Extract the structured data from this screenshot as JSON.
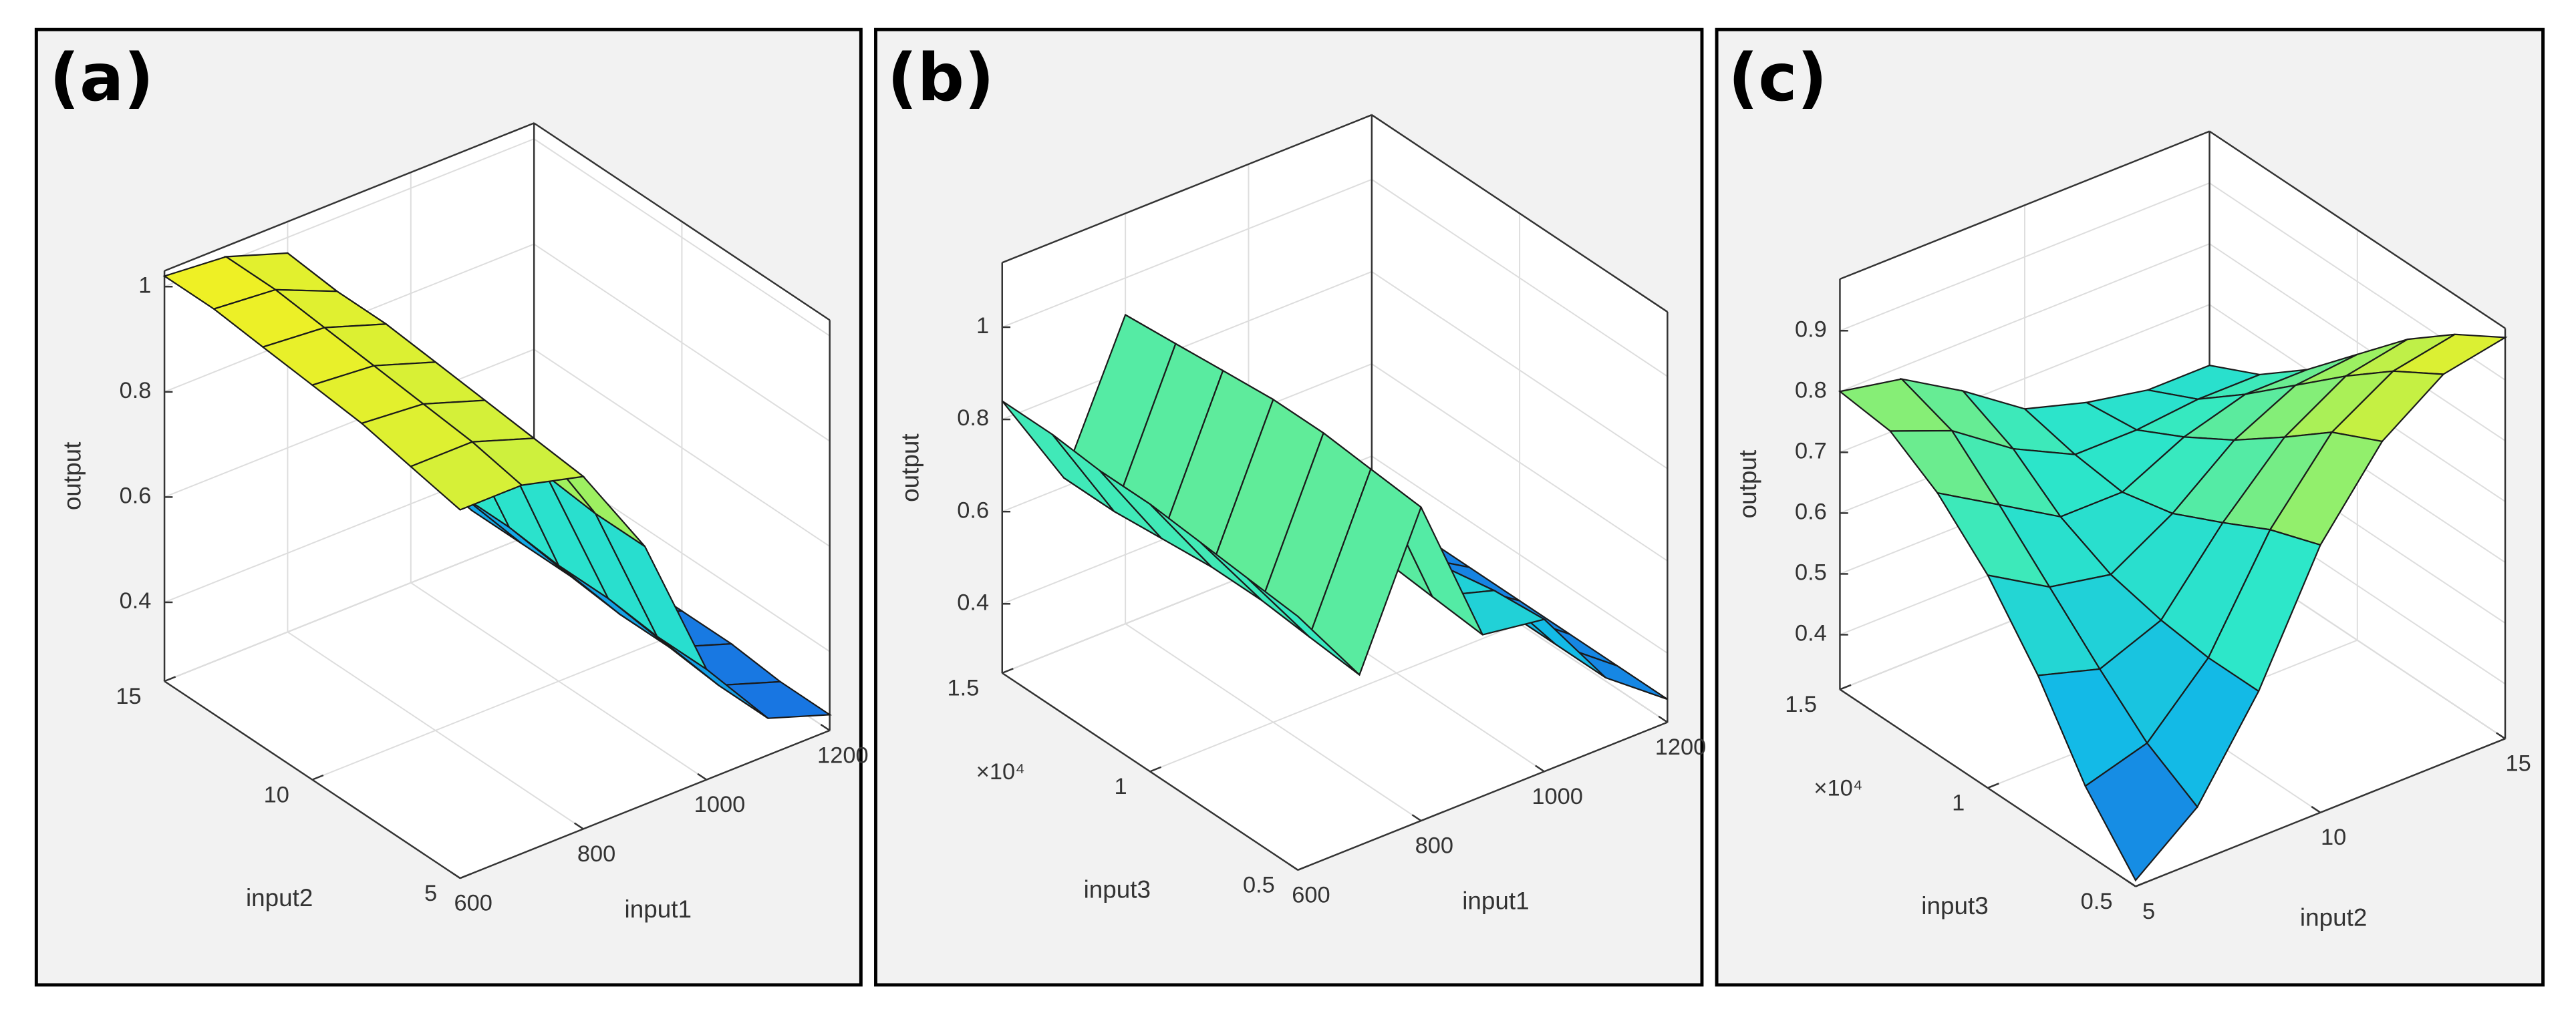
{
  "chart_data": [
    {
      "type": "surface",
      "title": "(a)",
      "x_label": "input1",
      "y_label": "input2",
      "z_label": "output",
      "x": [
        600,
        700,
        800,
        900,
        1000,
        1100,
        1200
      ],
      "y": [
        5,
        6.67,
        8.33,
        10,
        11.67,
        13.33,
        15
      ],
      "z": [
        [
          0.95,
          0.95,
          0.92,
          0.74,
          0.46,
          0.32,
          0.28
        ],
        [
          0.97,
          0.97,
          0.93,
          0.74,
          0.46,
          0.32,
          0.28
        ],
        [
          0.99,
          0.98,
          0.94,
          0.75,
          0.47,
          0.33,
          0.29
        ],
        [
          1.0,
          0.99,
          0.95,
          0.76,
          0.47,
          0.33,
          0.29
        ],
        [
          1.01,
          1.0,
          0.96,
          0.76,
          0.48,
          0.34,
          0.29
        ],
        [
          1.02,
          1.01,
          0.96,
          0.77,
          0.48,
          0.34,
          0.3
        ],
        [
          1.02,
          1.01,
          0.97,
          0.77,
          0.48,
          0.34,
          0.3
        ]
      ],
      "xlim": [
        600,
        1200
      ],
      "ylim": [
        5,
        15
      ],
      "zlim": [
        0.25,
        1.03
      ],
      "xticks": [
        600,
        800,
        1000,
        1200
      ],
      "yticks": [
        5,
        10,
        15
      ],
      "zticks": [
        0.4,
        0.6,
        0.8,
        1
      ],
      "colormap": [
        "#1a5fe0",
        "#12b8e8",
        "#2ee8c8",
        "#9ef060",
        "#f5f020"
      ],
      "grid": true
    },
    {
      "type": "surface",
      "title": "(b)",
      "x_label": "input1",
      "y_label": "input3",
      "z_label": "output",
      "y_exponent": "×10⁴",
      "x": [
        600,
        700,
        800,
        900,
        1000,
        1100,
        1200
      ],
      "y": [
        0.5,
        0.67,
        0.83,
        1,
        1.17,
        1.33,
        1.5
      ],
      "z": [
        [
          0.8,
          0.62,
          0.93,
          0.6,
          0.58,
          0.4,
          0.3
        ],
        [
          0.81,
          0.63,
          0.94,
          0.61,
          0.57,
          0.4,
          0.3
        ],
        [
          0.82,
          0.64,
          0.95,
          0.62,
          0.55,
          0.4,
          0.3
        ],
        [
          0.83,
          0.64,
          0.95,
          0.63,
          0.52,
          0.39,
          0.3
        ],
        [
          0.83,
          0.63,
          0.94,
          0.64,
          0.5,
          0.38,
          0.3
        ],
        [
          0.84,
          0.62,
          0.93,
          0.65,
          0.49,
          0.37,
          0.3
        ],
        [
          0.84,
          0.62,
          0.92,
          0.66,
          0.48,
          0.36,
          0.3
        ]
      ],
      "xlim": [
        600,
        1200
      ],
      "ylim": [
        0.5,
        1.5
      ],
      "zlim": [
        0.25,
        1.14
      ],
      "xticks": [
        600,
        800,
        1000,
        1200
      ],
      "yticks": [
        0.5,
        1,
        1.5
      ],
      "zticks": [
        0.4,
        0.6,
        0.8,
        1
      ],
      "colormap": [
        "#1a5fe0",
        "#12b8e8",
        "#2ee8c8",
        "#9ef060",
        "#f5f020"
      ],
      "grid": true
    },
    {
      "type": "surface",
      "title": "(c)",
      "x_label": "input2",
      "y_label": "input3",
      "z_label": "output",
      "y_exponent": "×10⁴",
      "x": [
        5,
        6.67,
        8.33,
        10,
        11.67,
        13.33,
        15
      ],
      "y": [
        0.5,
        0.67,
        0.83,
        1,
        1.17,
        1.33,
        1.5
      ],
      "z": [
        [
          0.32,
          0.4,
          0.55,
          0.75,
          0.88,
          0.95,
          0.97
        ],
        [
          0.42,
          0.45,
          0.55,
          0.72,
          0.84,
          0.9,
          0.92
        ],
        [
          0.55,
          0.52,
          0.56,
          0.68,
          0.78,
          0.84,
          0.86
        ],
        [
          0.66,
          0.6,
          0.58,
          0.64,
          0.72,
          0.77,
          0.78
        ],
        [
          0.74,
          0.68,
          0.62,
          0.62,
          0.67,
          0.7,
          0.7
        ],
        [
          0.79,
          0.75,
          0.68,
          0.63,
          0.63,
          0.64,
          0.64
        ],
        [
          0.8,
          0.78,
          0.72,
          0.65,
          0.62,
          0.6,
          0.6
        ]
      ],
      "xlim": [
        5,
        15
      ],
      "ylim": [
        0.5,
        1.5
      ],
      "zlim": [
        0.31,
        0.985
      ],
      "xticks": [
        5,
        10,
        15
      ],
      "yticks": [
        0.5,
        1,
        1.5
      ],
      "zticks": [
        0.4,
        0.5,
        0.6,
        0.7,
        0.8,
        0.9
      ],
      "colormap": [
        "#1a5fe0",
        "#12b8e8",
        "#2ee8c8",
        "#9ef060",
        "#f5f020"
      ],
      "grid": true
    }
  ]
}
